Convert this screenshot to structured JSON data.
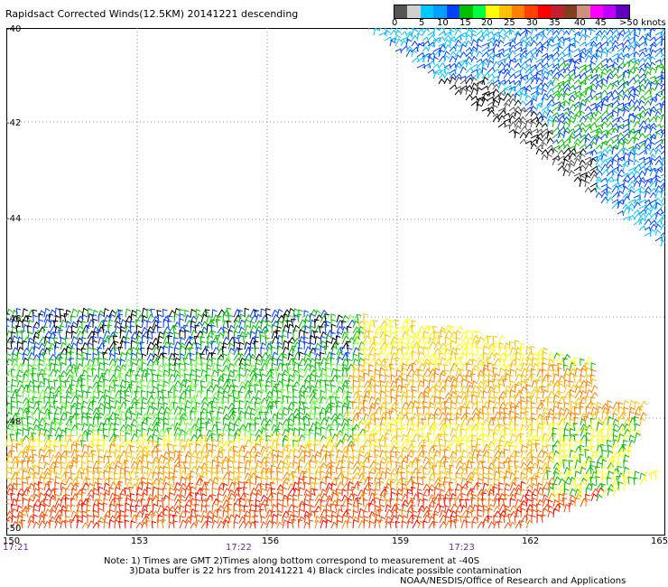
{
  "title": "Rapidsact Corrected Winds(12.5KM) 20141221 descending",
  "colorbar": {
    "colors": [
      "#555555",
      "#d0d0d0",
      "#00c8ff",
      "#00a0ff",
      "#0040ff",
      "#00c000",
      "#00ff40",
      "#ffff00",
      "#ffc000",
      "#ff8000",
      "#ff4000",
      "#ff0000",
      "#c02030",
      "#804020",
      "#d09080",
      "#ff00ff",
      "#c000ff",
      "#6000c0"
    ],
    "labels": [
      "0",
      "5",
      "10",
      "15",
      "20",
      "25",
      "30",
      "35",
      "40",
      "45",
      ">50 knots"
    ]
  },
  "map": {
    "lat_labels": [
      "-40",
      "-42",
      "-44",
      "-46",
      "-48",
      "-50"
    ],
    "lon_labels": [
      "150",
      "153",
      "156",
      "159",
      "162",
      "165"
    ],
    "time_labels": [
      "17:21",
      "17:22",
      "17:23"
    ]
  },
  "notes": {
    "line1": "Note: 1) Times are GMT 2)Times along bottom correspond to measurement at -40S",
    "line2": "3)Data buffer is 22 hrs from 20141221 4) Black circles indicate possible contamination",
    "line3": "NOAA/NESDIS/Office of Research and Applications"
  }
}
